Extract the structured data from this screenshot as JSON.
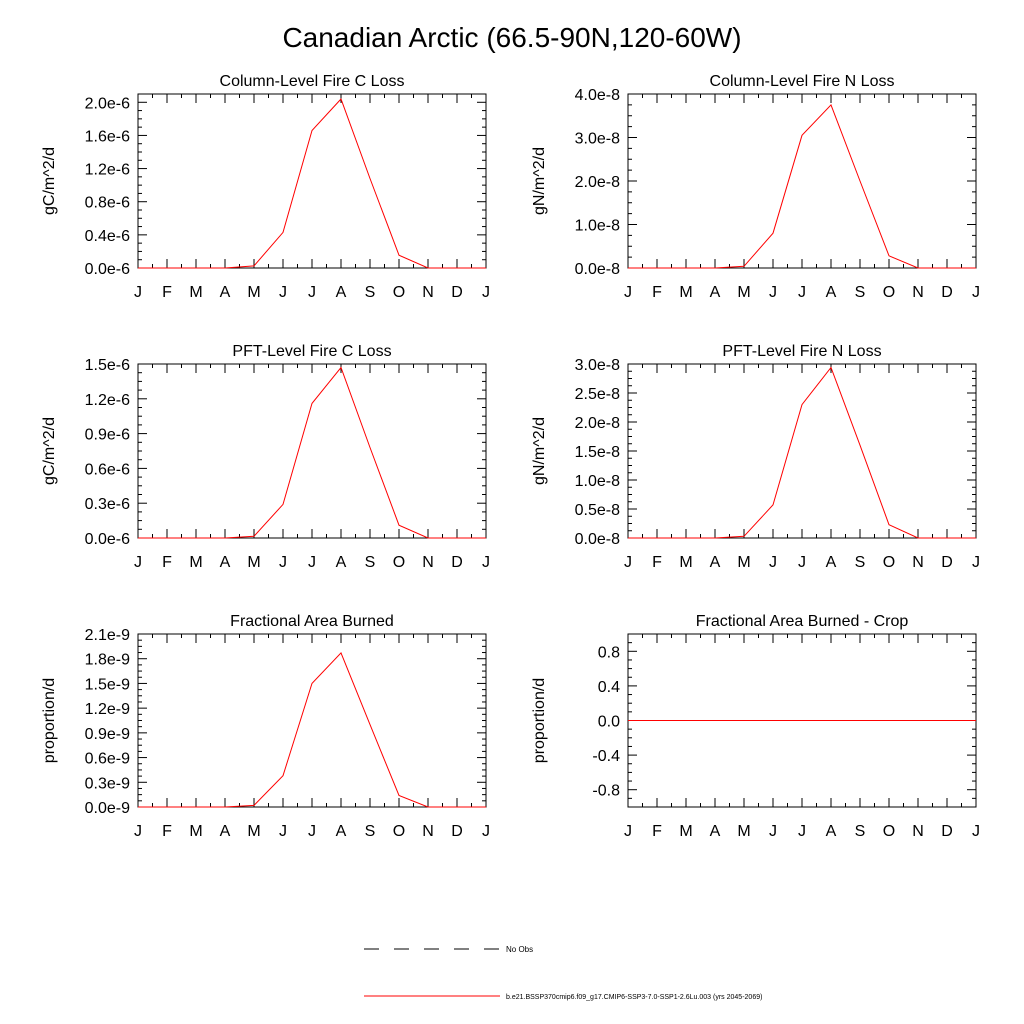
{
  "figure": {
    "title": "Canadian Arctic (66.5-90N,120-60W)"
  },
  "legend": {
    "entries": [
      {
        "label": "No Obs",
        "color": "#000000",
        "style": "dashed"
      },
      {
        "label": "b.e21.BSSP370cmip6.f09_g17.CMIP6-SSP3-7.0-SSP1-2.6Lu.003 (yrs 2045-2069)",
        "color": "#ff0000",
        "style": "solid"
      }
    ]
  },
  "chart_data": [
    {
      "type": "line",
      "title": "Column-Level Fire C Loss",
      "ylabel": "gC/m^2/d",
      "categories": [
        "J",
        "F",
        "M",
        "A",
        "M",
        "J",
        "J",
        "A",
        "S",
        "O",
        "N",
        "D",
        "J"
      ],
      "ylim": [
        0,
        2.1e-06
      ],
      "yticks": [
        0,
        4e-07,
        8e-07,
        1.2e-06,
        1.6e-06,
        2e-06
      ],
      "ytick_labels": [
        "0.0e-6",
        "0.4e-6",
        "0.8e-6",
        "1.2e-6",
        "1.6e-6",
        "2.0e-6"
      ],
      "series": [
        {
          "color": "#ff0000",
          "values": [
            0,
            0,
            0,
            0,
            2.5e-08,
            4.3e-07,
            1.66e-06,
            2.04e-06,
            1.08e-06,
            1.55e-07,
            0,
            0,
            0
          ]
        }
      ]
    },
    {
      "type": "line",
      "title": "Column-Level Fire N Loss",
      "ylabel": "gN/m^2/d",
      "categories": [
        "J",
        "F",
        "M",
        "A",
        "M",
        "J",
        "J",
        "A",
        "S",
        "O",
        "N",
        "D",
        "J"
      ],
      "ylim": [
        0,
        4e-08
      ],
      "yticks": [
        0,
        1e-08,
        2e-08,
        3e-08,
        4e-08
      ],
      "ytick_labels": [
        "0.0e-8",
        "1.0e-8",
        "2.0e-8",
        "3.0e-8",
        "4.0e-8"
      ],
      "series": [
        {
          "color": "#ff0000",
          "values": [
            0,
            0,
            0,
            0,
            4e-10,
            8e-09,
            3.05e-08,
            3.75e-08,
            2e-08,
            2.8e-09,
            0,
            0,
            0
          ]
        }
      ]
    },
    {
      "type": "line",
      "title": "PFT-Level Fire C Loss",
      "ylabel": "gC/m^2/d",
      "categories": [
        "J",
        "F",
        "M",
        "A",
        "M",
        "J",
        "J",
        "A",
        "S",
        "O",
        "N",
        "D",
        "J"
      ],
      "ylim": [
        0,
        1.5e-06
      ],
      "yticks": [
        0,
        3e-07,
        6e-07,
        9e-07,
        1.2e-06,
        1.5e-06
      ],
      "ytick_labels": [
        "0.0e-6",
        "0.3e-6",
        "0.6e-6",
        "0.9e-6",
        "1.2e-6",
        "1.5e-6"
      ],
      "series": [
        {
          "color": "#ff0000",
          "values": [
            0,
            0,
            0,
            0,
            1.5e-08,
            2.9e-07,
            1.16e-06,
            1.47e-06,
            7.8e-07,
            1.1e-07,
            0,
            0,
            0
          ]
        }
      ]
    },
    {
      "type": "line",
      "title": "PFT-Level Fire N Loss",
      "ylabel": "gN/m^2/d",
      "categories": [
        "J",
        "F",
        "M",
        "A",
        "M",
        "J",
        "J",
        "A",
        "S",
        "O",
        "N",
        "D",
        "J"
      ],
      "ylim": [
        0,
        3e-08
      ],
      "yticks": [
        0,
        5e-09,
        1e-08,
        1.5e-08,
        2e-08,
        2.5e-08,
        3e-08
      ],
      "ytick_labels": [
        "0.0e-8",
        "0.5e-8",
        "1.0e-8",
        "1.5e-8",
        "2.0e-8",
        "2.5e-8",
        "3.0e-8"
      ],
      "series": [
        {
          "color": "#ff0000",
          "values": [
            0,
            0,
            0,
            0,
            3e-10,
            5.7e-09,
            2.3e-08,
            2.94e-08,
            1.6e-08,
            2.3e-09,
            0,
            0,
            0
          ]
        }
      ]
    },
    {
      "type": "line",
      "title": "Fractional Area Burned",
      "ylabel": "proportion/d",
      "categories": [
        "J",
        "F",
        "M",
        "A",
        "M",
        "J",
        "J",
        "A",
        "S",
        "O",
        "N",
        "D",
        "J"
      ],
      "ylim": [
        0,
        2.1e-09
      ],
      "yticks": [
        0,
        3e-10,
        6e-10,
        9e-10,
        1.2e-09,
        1.5e-09,
        1.8e-09,
        2.1e-09
      ],
      "ytick_labels": [
        "0.0e-9",
        "0.3e-9",
        "0.6e-9",
        "0.9e-9",
        "1.2e-9",
        "1.5e-9",
        "1.8e-9",
        "2.1e-9"
      ],
      "series": [
        {
          "color": "#ff0000",
          "values": [
            0,
            0,
            0,
            0,
            2e-11,
            3.8e-10,
            1.5e-09,
            1.87e-09,
            1e-09,
            1.4e-10,
            0,
            0,
            0
          ]
        }
      ]
    },
    {
      "type": "line",
      "title": "Fractional Area Burned - Crop",
      "ylabel": "proportion/d",
      "categories": [
        "J",
        "F",
        "M",
        "A",
        "M",
        "J",
        "J",
        "A",
        "S",
        "O",
        "N",
        "D",
        "J"
      ],
      "ylim": [
        -1.0,
        1.0
      ],
      "yticks": [
        -0.8,
        -0.4,
        0.0,
        0.4,
        0.8
      ],
      "ytick_labels": [
        "-0.8",
        "-0.4",
        "0.0",
        "0.4",
        "0.8"
      ],
      "series": [
        {
          "color": "#ff0000",
          "values": [
            0,
            0,
            0,
            0,
            0,
            0,
            0,
            0,
            0,
            0,
            0,
            0,
            0
          ]
        }
      ]
    }
  ]
}
